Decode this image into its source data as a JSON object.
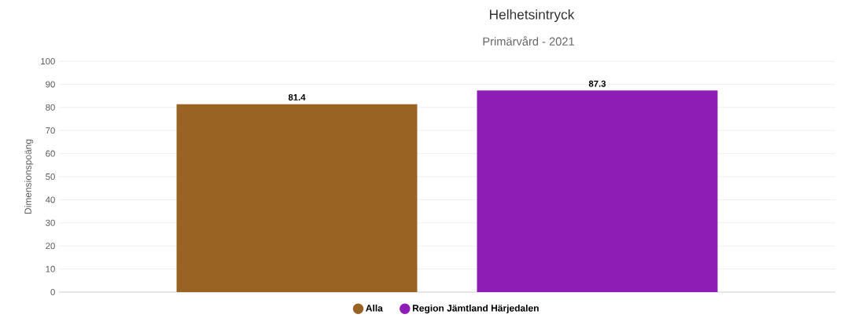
{
  "chart_data": {
    "type": "bar",
    "title": "Helhetsintryck",
    "subtitle": "Primärvård - 2021",
    "ylabel": "Dimensionspoäng",
    "categories": [
      null
    ],
    "series": [
      {
        "name": "Alla",
        "color": "#996323",
        "values": [
          81.4
        ]
      },
      {
        "name": "Region Jämtland Härjedalen",
        "color": "#8e1db5",
        "values": [
          87.3
        ]
      }
    ],
    "ylim": [
      0,
      100
    ],
    "yticks": [
      0,
      10,
      20,
      30,
      40,
      50,
      60,
      70,
      80,
      90,
      100
    ],
    "grid": "y",
    "legend": "bottom",
    "data_labels": true
  }
}
